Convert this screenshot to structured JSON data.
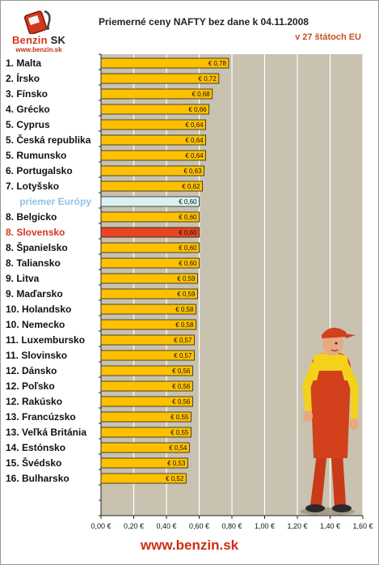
{
  "header": {
    "logo_text_main": "Benzin",
    "logo_text_suffix": "SK",
    "logo_url": "www.benzin.sk",
    "title": "Priemerné ceny NAFTY bez dane k 04.11.2008",
    "subtitle": "v 27 štátoch EU"
  },
  "footer": {
    "url": "www.benzin.sk"
  },
  "colors": {
    "bar": "#ffc000",
    "bar_average": "#d9f2f1",
    "bar_highlight": "#e84520",
    "plot_bg": "#c9c2b0",
    "text_average": "#8cc4e6",
    "text_highlight": "#d2381c"
  },
  "chart_data": {
    "type": "bar",
    "orientation": "horizontal",
    "title": "Priemerné ceny NAFTY bez dane k 04.11.2008",
    "subtitle": "v 27 štátoch EU",
    "categories": [
      "1. Malta",
      "2. Írsko",
      "3. Fínsko",
      "4. Grécko",
      "5. Cyprus",
      "5. Česká republika",
      "5. Rumunsko",
      "6. Portugalsko",
      "7. Lotyšsko",
      "priemer Európy",
      "8. Belgicko",
      "8. Slovensko",
      "8. Španielsko",
      "8. Taliansko",
      "9. Litva",
      "9. Maďarsko",
      "10. Holandsko",
      "10. Nemecko",
      "11. Luxembursko",
      "11. Slovinsko",
      "12. Dánsko",
      "12. Poľsko",
      "12. Rakúsko",
      "13. Francúzsko",
      "13. Veľká Británia",
      "14. Estónsko",
      "15. Švédsko",
      "16. Bulharsko"
    ],
    "values": [
      0.78,
      0.72,
      0.68,
      0.66,
      0.64,
      0.64,
      0.64,
      0.63,
      0.62,
      0.6,
      0.6,
      0.6,
      0.6,
      0.6,
      0.59,
      0.59,
      0.58,
      0.58,
      0.57,
      0.57,
      0.56,
      0.56,
      0.56,
      0.55,
      0.55,
      0.54,
      0.53,
      0.52
    ],
    "value_labels": [
      "€ 0,78",
      "€ 0,72",
      "€ 0,68",
      "€ 0,66",
      "€ 0,64",
      "€ 0,64",
      "€ 0,64",
      "€ 0,63",
      "€ 0,62",
      "€ 0,60",
      "€ 0,60",
      "€ 0,60",
      "€ 0,60",
      "€ 0,60",
      "€ 0,59",
      "€ 0,59",
      "€ 0,58",
      "€ 0,58",
      "€ 0,57",
      "€ 0,57",
      "€ 0,56",
      "€ 0,56",
      "€ 0,56",
      "€ 0,55",
      "€ 0,55",
      "€ 0,54",
      "€ 0,53",
      "€ 0,52"
    ],
    "average_index": 9,
    "highlight_index": 11,
    "xlim": [
      0,
      1.6
    ],
    "x_ticks": [
      0,
      0.2,
      0.4,
      0.6,
      0.8,
      1.0,
      1.2,
      1.4,
      1.6
    ],
    "x_tick_labels": [
      "0,00 €",
      "0,20 €",
      "0,40 €",
      "0,60 €",
      "0,80 €",
      "1,00 €",
      "1,20 €",
      "1,40 €",
      "1,60 €"
    ],
    "grid": true,
    "legend": "none"
  }
}
